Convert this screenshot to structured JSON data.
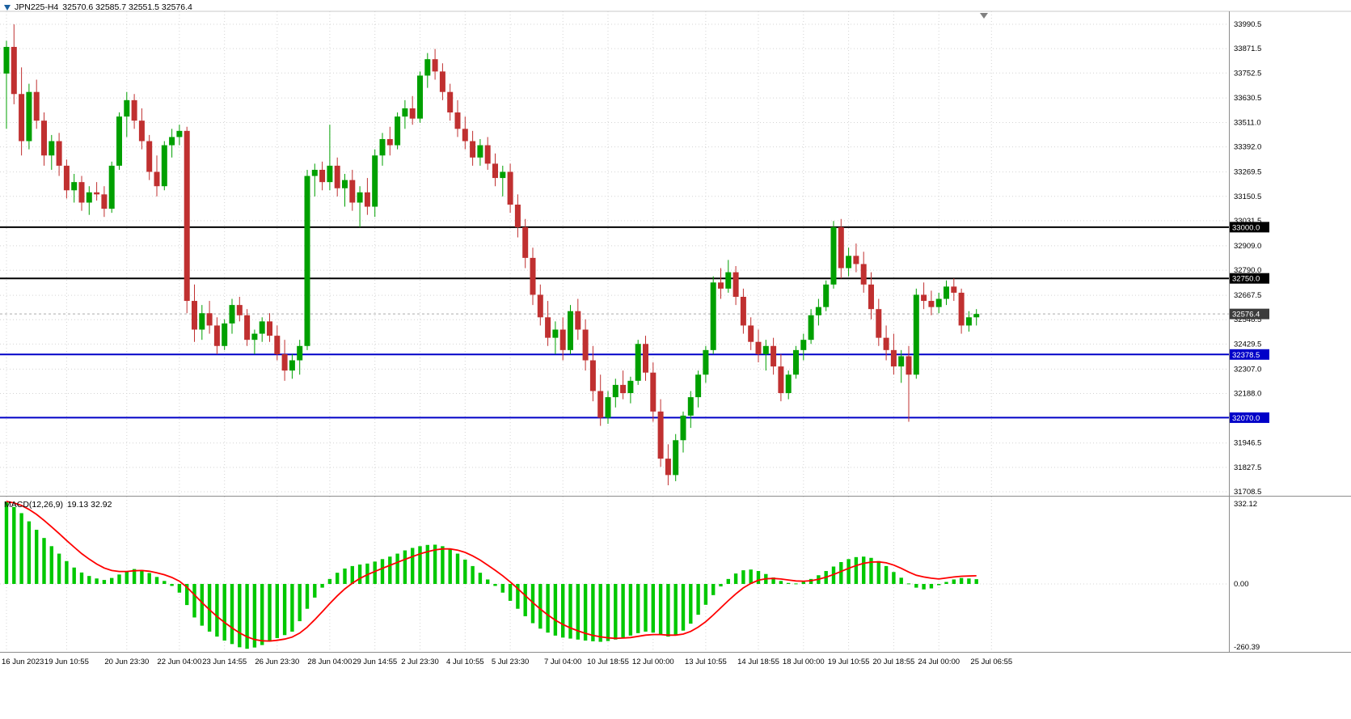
{
  "header": {
    "symbol": "JPN225-H4",
    "ohlc": "32570.6 32585.7 32551.5 32576.4"
  },
  "macd_panel": {
    "label": "MACD(12,26,9)",
    "values": "19.13 32.92"
  },
  "colors": {
    "bull": "#00A000",
    "bear": "#C03030",
    "macd_hist": "#00C800",
    "macd_signal": "#FF0000",
    "line_black": "#000000",
    "line_blue": "#0000C8",
    "bid_tag": "#3C3C3C",
    "grid": "#D4D4D4",
    "separator": "#8C8C8C",
    "axis_text": "#000000"
  },
  "chart_data": {
    "type": "candlestick",
    "symbol": "JPN225",
    "timeframe": "H4",
    "title": "JPN225-H4 32570.6 32585.7 32551.5 32576.4",
    "ohlc_display": {
      "open": "32570.6",
      "high": "32585.7",
      "low": "32551.5",
      "close": "32576.4"
    },
    "price_axis": {
      "min": 31650,
      "max": 34030,
      "tick_values": [
        33990.5,
        33871.5,
        33752.5,
        33630.5,
        33511.0,
        33392.0,
        33269.5,
        33150.5,
        33031.5,
        32909.0,
        32790.0,
        32667.5,
        32548.5,
        32429.5,
        32307.0,
        32188.0,
        31946.5,
        31827.5,
        31708.5
      ]
    },
    "horizontal_lines": [
      {
        "value": 33000.0,
        "label": "33000.0",
        "color": "#000000"
      },
      {
        "value": 32750.0,
        "label": "32750.0",
        "color": "#000000"
      },
      {
        "value": 32378.5,
        "label": "32378.5",
        "color": "#0000C8"
      },
      {
        "value": 32070.0,
        "label": "32070.0",
        "color": "#0000C8"
      }
    ],
    "bid": {
      "value": 32576.4,
      "label": "32576.4"
    },
    "candles": [
      [
        33750,
        33910,
        33480,
        33880
      ],
      [
        33880,
        33990,
        33600,
        33650
      ],
      [
        33650,
        33780,
        33350,
        33420
      ],
      [
        33420,
        33700,
        33380,
        33660
      ],
      [
        33660,
        33720,
        33480,
        33520
      ],
      [
        33520,
        33560,
        33300,
        33350
      ],
      [
        33350,
        33450,
        33280,
        33420
      ],
      [
        33420,
        33460,
        33250,
        33300
      ],
      [
        33300,
        33330,
        33140,
        33180
      ],
      [
        33180,
        33260,
        33120,
        33220
      ],
      [
        33220,
        33250,
        33080,
        33120
      ],
      [
        33120,
        33200,
        33060,
        33170
      ],
      [
        33170,
        33220,
        33130,
        33160
      ],
      [
        33160,
        33200,
        33050,
        33090
      ],
      [
        33090,
        33320,
        33070,
        33300
      ],
      [
        33300,
        33560,
        33280,
        33540
      ],
      [
        33540,
        33660,
        33440,
        33620
      ],
      [
        33620,
        33650,
        33480,
        33520
      ],
      [
        33520,
        33580,
        33380,
        33420
      ],
      [
        33420,
        33450,
        33230,
        33270
      ],
      [
        33270,
        33350,
        33150,
        33200
      ],
      [
        33200,
        33420,
        33180,
        33400
      ],
      [
        33400,
        33480,
        33340,
        33440
      ],
      [
        33440,
        33500,
        33400,
        33470
      ],
      [
        33470,
        33490,
        32580,
        32640
      ],
      [
        32640,
        32720,
        32440,
        32500
      ],
      [
        32500,
        32620,
        32450,
        32580
      ],
      [
        32580,
        32640,
        32480,
        32520
      ],
      [
        32520,
        32560,
        32380,
        32420
      ],
      [
        32420,
        32550,
        32400,
        32530
      ],
      [
        32530,
        32650,
        32480,
        32620
      ],
      [
        32620,
        32660,
        32540,
        32570
      ],
      [
        32570,
        32600,
        32420,
        32450
      ],
      [
        32450,
        32500,
        32380,
        32480
      ],
      [
        32480,
        32560,
        32440,
        32540
      ],
      [
        32540,
        32580,
        32440,
        32470
      ],
      [
        32470,
        32520,
        32350,
        32380
      ],
      [
        32380,
        32450,
        32250,
        32300
      ],
      [
        32300,
        32380,
        32260,
        32350
      ],
      [
        32350,
        32450,
        32280,
        32420
      ],
      [
        32420,
        33280,
        32400,
        33250
      ],
      [
        33250,
        33310,
        33150,
        33280
      ],
      [
        33280,
        33320,
        33180,
        33220
      ],
      [
        33220,
        33500,
        33180,
        33300
      ],
      [
        33300,
        33340,
        33150,
        33190
      ],
      [
        33190,
        33260,
        33100,
        33230
      ],
      [
        33230,
        33280,
        33080,
        33120
      ],
      [
        33120,
        33200,
        33000,
        33170
      ],
      [
        33170,
        33240,
        33060,
        33100
      ],
      [
        33100,
        33380,
        33050,
        33350
      ],
      [
        33350,
        33460,
        33300,
        33430
      ],
      [
        33430,
        33490,
        33350,
        33400
      ],
      [
        33400,
        33560,
        33380,
        33540
      ],
      [
        33540,
        33620,
        33480,
        33580
      ],
      [
        33580,
        33640,
        33500,
        33530
      ],
      [
        33530,
        33760,
        33510,
        33740
      ],
      [
        33740,
        33850,
        33680,
        33820
      ],
      [
        33820,
        33870,
        33720,
        33760
      ],
      [
        33760,
        33800,
        33620,
        33660
      ],
      [
        33660,
        33700,
        33520,
        33560
      ],
      [
        33560,
        33620,
        33440,
        33480
      ],
      [
        33480,
        33540,
        33380,
        33420
      ],
      [
        33420,
        33470,
        33300,
        33340
      ],
      [
        33340,
        33430,
        33300,
        33400
      ],
      [
        33400,
        33440,
        33280,
        33310
      ],
      [
        33310,
        33360,
        33200,
        33240
      ],
      [
        33240,
        33300,
        33150,
        33270
      ],
      [
        33270,
        33310,
        33070,
        33110
      ],
      [
        33110,
        33160,
        32950,
        33000
      ],
      [
        33000,
        33040,
        32800,
        32850
      ],
      [
        32850,
        32900,
        32620,
        32670
      ],
      [
        32670,
        32720,
        32520,
        32560
      ],
      [
        32560,
        32640,
        32420,
        32460
      ],
      [
        32460,
        32540,
        32380,
        32500
      ],
      [
        32500,
        32560,
        32350,
        32400
      ],
      [
        32400,
        32620,
        32380,
        32590
      ],
      [
        32590,
        32650,
        32450,
        32500
      ],
      [
        32500,
        32550,
        32300,
        32350
      ],
      [
        32350,
        32420,
        32150,
        32200
      ],
      [
        32200,
        32280,
        32030,
        32070
      ],
      [
        32070,
        32200,
        32040,
        32170
      ],
      [
        32170,
        32260,
        32120,
        32230
      ],
      [
        32230,
        32300,
        32160,
        32190
      ],
      [
        32190,
        32270,
        32140,
        32250
      ],
      [
        32250,
        32450,
        32230,
        32430
      ],
      [
        32430,
        32470,
        32250,
        32290
      ],
      [
        32290,
        32340,
        32050,
        32100
      ],
      [
        32100,
        32160,
        31830,
        31870
      ],
      [
        31870,
        31940,
        31740,
        31790
      ],
      [
        31790,
        31990,
        31760,
        31960
      ],
      [
        31960,
        32100,
        31900,
        32080
      ],
      [
        32080,
        32200,
        32020,
        32170
      ],
      [
        32170,
        32300,
        32120,
        32280
      ],
      [
        32280,
        32420,
        32240,
        32400
      ],
      [
        32400,
        32760,
        32380,
        32730
      ],
      [
        32730,
        32800,
        32650,
        32700
      ],
      [
        32700,
        32840,
        32680,
        32780
      ],
      [
        32780,
        32810,
        32620,
        32660
      ],
      [
        32660,
        32700,
        32480,
        32520
      ],
      [
        32520,
        32560,
        32400,
        32440
      ],
      [
        32440,
        32500,
        32340,
        32380
      ],
      [
        32380,
        32450,
        32300,
        32420
      ],
      [
        32420,
        32460,
        32280,
        32320
      ],
      [
        32320,
        32380,
        32150,
        32190
      ],
      [
        32190,
        32300,
        32160,
        32280
      ],
      [
        32280,
        32420,
        32260,
        32400
      ],
      [
        32400,
        32480,
        32350,
        32450
      ],
      [
        32450,
        32600,
        32430,
        32570
      ],
      [
        32570,
        32650,
        32520,
        32610
      ],
      [
        32610,
        32740,
        32590,
        32720
      ],
      [
        32720,
        33030,
        32700,
        33000
      ],
      [
        33000,
        33040,
        32750,
        32800
      ],
      [
        32800,
        32900,
        32760,
        32860
      ],
      [
        32860,
        32920,
        32780,
        32820
      ],
      [
        32820,
        32880,
        32680,
        32720
      ],
      [
        32720,
        32780,
        32550,
        32600
      ],
      [
        32600,
        32650,
        32420,
        32460
      ],
      [
        32460,
        32520,
        32350,
        32400
      ],
      [
        32400,
        32480,
        32280,
        32320
      ],
      [
        32320,
        32400,
        32240,
        32370
      ],
      [
        32370,
        32420,
        32050,
        32280
      ],
      [
        32280,
        32700,
        32260,
        32670
      ],
      [
        32670,
        32730,
        32600,
        32640
      ],
      [
        32640,
        32690,
        32570,
        32610
      ],
      [
        32610,
        32680,
        32580,
        32650
      ],
      [
        32650,
        32740,
        32620,
        32710
      ],
      [
        32710,
        32750,
        32640,
        32680
      ],
      [
        32680,
        32700,
        32480,
        32520
      ],
      [
        32520,
        32590,
        32490,
        32560
      ],
      [
        32560,
        32600,
        32520,
        32576.4
      ]
    ],
    "time_axis": {
      "labels": [
        {
          "t": "16 Jun 2023",
          "i": 0
        },
        {
          "t": "19 Jun 10:55",
          "i": 8
        },
        {
          "t": "20 Jun 23:30",
          "i": 16
        },
        {
          "t": "22 Jun 04:00",
          "i": 23
        },
        {
          "t": "23 Jun 14:55",
          "i": 29
        },
        {
          "t": "26 Jun 23:30",
          "i": 36
        },
        {
          "t": "28 Jun 04:00",
          "i": 43
        },
        {
          "t": "29 Jun 14:55",
          "i": 49
        },
        {
          "t": "2 Jul 23:30",
          "i": 55
        },
        {
          "t": "4 Jul 10:55",
          "i": 61
        },
        {
          "t": "5 Jul 23:30",
          "i": 67
        },
        {
          "t": "7 Jul 04:00",
          "i": 74
        },
        {
          "t": "10 Jul 18:55",
          "i": 80
        },
        {
          "t": "12 Jul 00:00",
          "i": 86
        },
        {
          "t": "13 Jul 10:55",
          "i": 93
        },
        {
          "t": "14 Jul 18:55",
          "i": 100
        },
        {
          "t": "18 Jul 00:00",
          "i": 106
        },
        {
          "t": "19 Jul 10:55",
          "i": 112
        },
        {
          "t": "20 Jul 18:55",
          "i": 118
        },
        {
          "t": "24 Jul 00:00",
          "i": 124
        },
        {
          "t": "25 Jul 06:55",
          "i": 131
        }
      ]
    },
    "macd": {
      "name": "MACD(12,26,9)",
      "display_values": "19.13 32.92",
      "scale_labels": [
        "332.12",
        "0.00",
        "-260.39"
      ],
      "scale_values": [
        332.12,
        0,
        -260.39
      ],
      "histogram": [
        332,
        310,
        285,
        252,
        218,
        185,
        152,
        122,
        92,
        66,
        46,
        32,
        22,
        16,
        24,
        38,
        52,
        60,
        56,
        44,
        28,
        12,
        -8,
        -35,
        -85,
        -135,
        -168,
        -192,
        -212,
        -228,
        -242,
        -255,
        -261,
        -256,
        -246,
        -232,
        -218,
        -206,
        -192,
        -150,
        -100,
        -55,
        -15,
        20,
        45,
        62,
        72,
        78,
        82,
        90,
        100,
        110,
        122,
        135,
        145,
        152,
        157,
        158,
        152,
        140,
        122,
        98,
        72,
        45,
        18,
        -8,
        -35,
        -68,
        -100,
        -130,
        -158,
        -180,
        -196,
        -208,
        -216,
        -220,
        -224,
        -228,
        -231,
        -233,
        -230,
        -224,
        -216,
        -208,
        -198,
        -192,
        -196,
        -205,
        -212,
        -206,
        -188,
        -160,
        -124,
        -84,
        -45,
        -10,
        20,
        42,
        55,
        58,
        52,
        40,
        26,
        12,
        4,
        2,
        8,
        20,
        35,
        52,
        70,
        88,
        100,
        108,
        110,
        105,
        92,
        72,
        48,
        25,
        2,
        -15,
        -22,
        -18,
        -5,
        8,
        18,
        24,
        22,
        19.13
      ],
      "signal": [
        332,
        326,
        316,
        300,
        280,
        256,
        230,
        203,
        175,
        148,
        122,
        100,
        80,
        64,
        54,
        50,
        50,
        53,
        54,
        51,
        45,
        37,
        26,
        11,
        -13,
        -44,
        -75,
        -104,
        -131,
        -155,
        -177,
        -197,
        -213,
        -224,
        -229,
        -230,
        -227,
        -222,
        -214,
        -198,
        -174,
        -144,
        -112,
        -79,
        -48,
        -20,
        3,
        22,
        37,
        50,
        63,
        75,
        87,
        99,
        110,
        121,
        130,
        137,
        141,
        141,
        136,
        127,
        113,
        96,
        76,
        55,
        33,
        8,
        -19,
        -47,
        -75,
        -101,
        -125,
        -146,
        -163,
        -177,
        -189,
        -199,
        -207,
        -213,
        -217,
        -219,
        -218,
        -216,
        -211,
        -206,
        -204,
        -204,
        -206,
        -206,
        -202,
        -191,
        -174,
        -152,
        -125,
        -96,
        -67,
        -40,
        -16,
        2,
        15,
        21,
        22,
        20,
        16,
        12,
        11,
        13,
        19,
        27,
        38,
        50,
        63,
        74,
        83,
        88,
        89,
        85,
        76,
        63,
        48,
        35,
        28,
        23,
        20,
        24,
        28,
        31,
        32,
        32.92
      ]
    }
  }
}
